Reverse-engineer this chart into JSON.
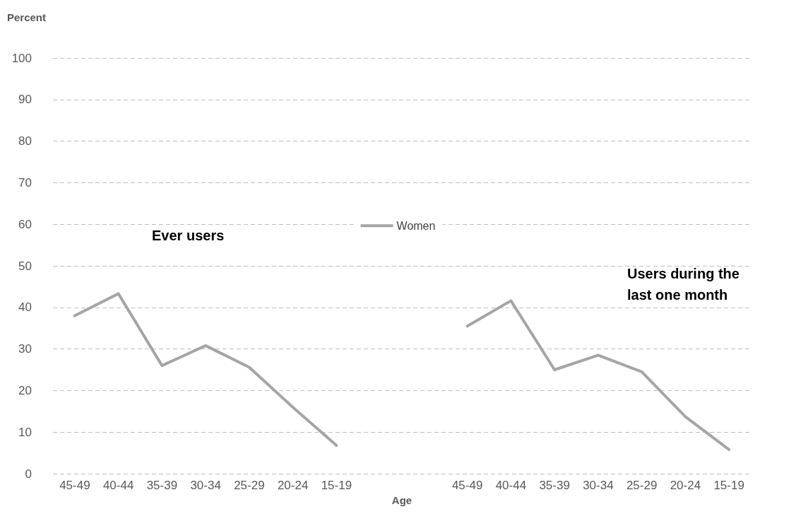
{
  "chart_data": {
    "type": "line",
    "ylabel": "Percent",
    "xlabel": "Age",
    "categories": [
      "45-49",
      "40-44",
      "35-39",
      "30-34",
      "25-29",
      "20-24",
      "15-19",
      null,
      null,
      "45-49",
      "40-44",
      "35-39",
      "30-34",
      "25-29",
      "20-24",
      "15-19"
    ],
    "series": [
      {
        "name": "Women",
        "color": "#a5a5a5",
        "values": [
          38,
          43.3,
          26,
          30.8,
          25.6,
          16,
          6.8,
          null,
          null,
          35.5,
          41.6,
          25,
          28.5,
          24.5,
          13.7,
          5.8
        ]
      }
    ],
    "ylim": [
      0,
      100
    ],
    "yticks": [
      0,
      10,
      20,
      30,
      40,
      50,
      60,
      70,
      80,
      90,
      100
    ],
    "grid": "y",
    "legend": "center",
    "marker": "none",
    "line_style": "solid",
    "annotations": [
      "Ever users",
      "Users during the\nlast one month"
    ]
  }
}
